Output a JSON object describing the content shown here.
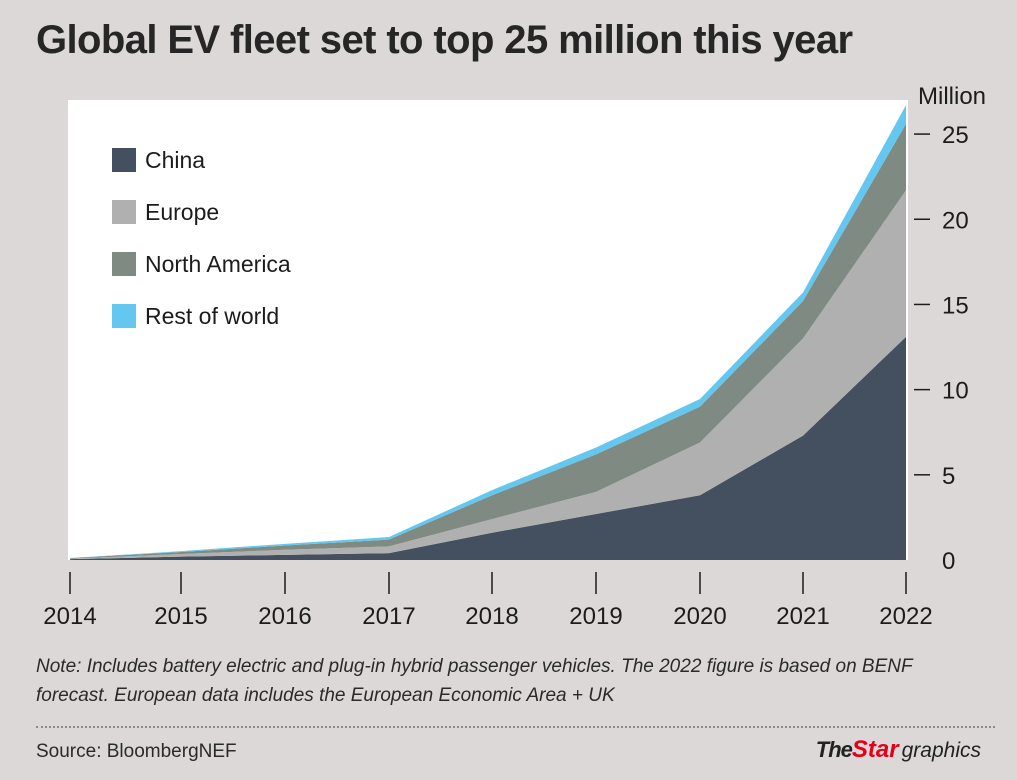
{
  "title": "Global EV fleet set to top 25 million this year",
  "note": "Note: Includes battery electric and plug-in hybrid passenger vehicles. The 2022 figure is based on BENF forecast. European data includes the European Economic Area + UK",
  "source": "Source: BloombergNEF",
  "logo": {
    "the": "The",
    "star": "Star",
    "graphics": "graphics"
  },
  "colors": {
    "background": "#dcd8d8",
    "plot_background": "#ffffff",
    "china": "#44505f",
    "europe": "#b0b0b0",
    "north_america": "#7f8b82",
    "rest_of_world": "#63c7ef",
    "brand_red": "#e3001b"
  },
  "chart_data": {
    "type": "area",
    "stacked": true,
    "title": "Global EV fleet set to top 25 million this year",
    "ylabel": "Million",
    "ylabel_position": "top-right",
    "yaxis_side": "right",
    "ylim": [
      0,
      27
    ],
    "yticks": [
      0,
      5,
      10,
      15,
      20,
      25
    ],
    "xlabel": "",
    "x": [
      2014,
      2015,
      2016,
      2017,
      2018,
      2019,
      2020,
      2021,
      2022
    ],
    "legend_position": "top-left",
    "grid": false,
    "series": [
      {
        "name": "China",
        "color": "#44505f",
        "values": [
          0.05,
          0.2,
          0.3,
          0.4,
          1.6,
          2.7,
          3.8,
          7.3,
          13.1
        ]
      },
      {
        "name": "Europe",
        "color": "#b0b0b0",
        "values": [
          0.03,
          0.15,
          0.3,
          0.4,
          0.8,
          1.3,
          3.1,
          5.7,
          8.6
        ]
      },
      {
        "name": "North America",
        "color": "#7f8b82",
        "values": [
          0.03,
          0.12,
          0.25,
          0.4,
          1.4,
          2.2,
          2.1,
          2.2,
          3.9
        ]
      },
      {
        "name": "Rest of world",
        "color": "#63c7ef",
        "values": [
          0.01,
          0.05,
          0.1,
          0.15,
          0.3,
          0.4,
          0.45,
          0.5,
          1.1
        ]
      }
    ]
  }
}
